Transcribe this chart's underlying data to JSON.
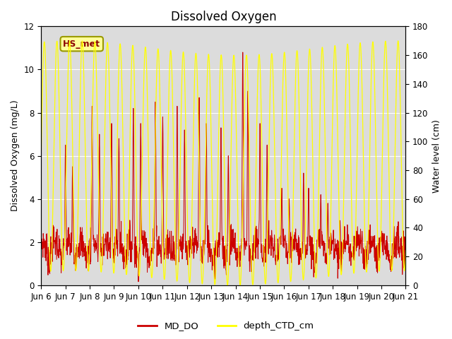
{
  "title": "Dissolved Oxygen",
  "ylabel_left": "Dissolved Oxygen (mg/L)",
  "ylabel_right": "Water level (cm)",
  "ylim_left": [
    0,
    12
  ],
  "ylim_right": [
    0,
    180
  ],
  "yticks_left": [
    0,
    2,
    4,
    6,
    8,
    10,
    12
  ],
  "yticks_right": [
    0,
    20,
    40,
    60,
    80,
    100,
    120,
    140,
    160,
    180
  ],
  "xlabel_ticks": [
    "Jun 6",
    "Jun 7",
    "Jun 8",
    "Jun 9",
    "Jun 10",
    "Jun 11",
    "Jun 12",
    "Jun 13",
    "Jun 14",
    "Jun 15",
    "Jun 16",
    "Jun 17",
    "Jun 18",
    "Jun 19",
    "Jun 20",
    "Jun 21"
  ],
  "color_DO": "#cc0000",
  "color_depth": "#ffff00",
  "legend_labels": [
    "MD_DO",
    "depth_CTD_cm"
  ],
  "annotation_text": "HS_met",
  "annotation_bg": "#ffff99",
  "annotation_border": "#999900",
  "plot_bg": "#dcdcdc",
  "fig_bg": "#ffffff",
  "grid_color": "#ffffff",
  "title_fontsize": 12,
  "label_fontsize": 9,
  "tick_fontsize": 8.5
}
